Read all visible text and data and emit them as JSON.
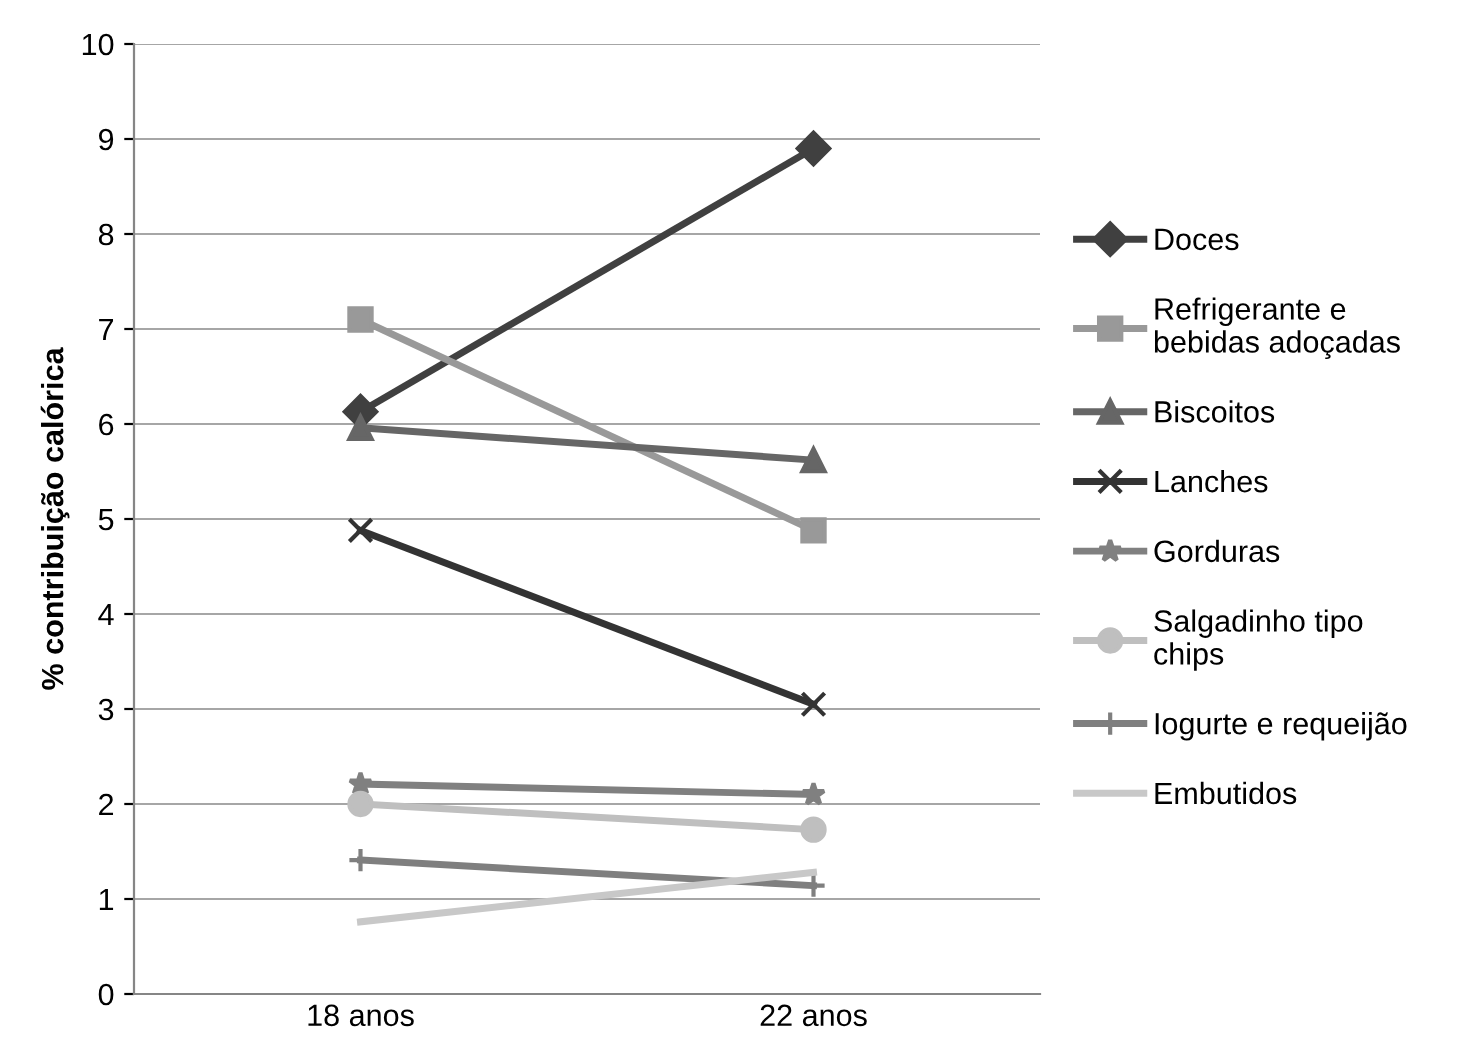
{
  "chart_data": {
    "type": "line",
    "ylabel": "% contribuição calórica",
    "categories": [
      "18 anos",
      "22 anos"
    ],
    "series": [
      {
        "name": "Doces",
        "color": "#404040",
        "marker": "diamond",
        "values": [
          6.13,
          8.9
        ]
      },
      {
        "name": "Refrigerante e\nbebidas adoçadas",
        "color": "#999999",
        "marker": "square",
        "values": [
          7.1,
          4.88
        ]
      },
      {
        "name": "Biscoitos",
        "color": "#666666",
        "marker": "triangle",
        "values": [
          5.96,
          5.62
        ]
      },
      {
        "name": "Lanches",
        "color": "#333333",
        "marker": "cross",
        "values": [
          4.88,
          3.05
        ]
      },
      {
        "name": "Gorduras",
        "color": "#808080",
        "marker": "star",
        "values": [
          2.21,
          2.1
        ]
      },
      {
        "name": "Salgadinho tipo\nchips",
        "color": "#bfbfbf",
        "marker": "circle",
        "values": [
          2.0,
          1.73
        ]
      },
      {
        "name": "Iogurte e requeijão",
        "color": "#7f7f7f",
        "marker": "plus",
        "values": [
          1.41,
          1.14
        ]
      },
      {
        "name": "Embutidos",
        "color": "#c8c8c8",
        "marker": "none",
        "values": [
          0.76,
          1.28
        ]
      }
    ],
    "ylim": [
      0,
      10
    ],
    "yticks": [
      0,
      1,
      2,
      3,
      4,
      5,
      6,
      7,
      8,
      9,
      10
    ],
    "grid": "y",
    "legend": "right",
    "line_style": "solid"
  }
}
